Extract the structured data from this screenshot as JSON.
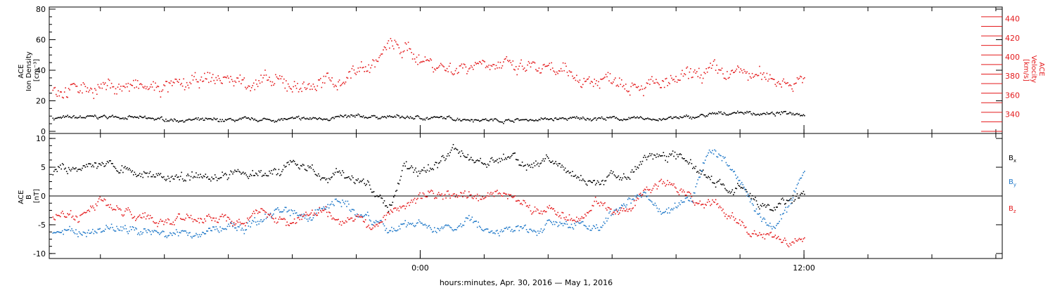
{
  "chart_data": {
    "type": "scatter",
    "xlabel": "hours:minutes, Apr. 30, 2016 — May  1, 2016",
    "x_tick_labels": [
      {
        "hours": 0,
        "label": "0:00"
      },
      {
        "hours": 12,
        "label": "12:00"
      }
    ],
    "x_range_hours": [
      -11.6,
      18.2
    ],
    "x_minor_tick_interval_hours": 2,
    "data_end_hours": 12.0,
    "colors": {
      "black": "#000000",
      "red": "#e41a1c",
      "blue": "#1f78c8"
    },
    "panels": [
      {
        "id": "top",
        "left_axis": {
          "label_lines": [
            "ACE",
            "Ion Density",
            "[cm⁻³]"
          ],
          "range": [
            0,
            80
          ],
          "ticks": [
            0,
            20,
            40,
            60,
            80
          ],
          "color": "#000000"
        },
        "right_axis": {
          "label_lines": [
            "ACE",
            "Velocity",
            "[km/s]"
          ],
          "range": [
            322,
            450
          ],
          "ticks": [
            340,
            360,
            380,
            400,
            420,
            440
          ],
          "color": "#e41a1c"
        },
        "series": [
          {
            "axis": "left",
            "color": "#000000",
            "points": [
              [
                -11.5,
                9
              ],
              [
                -10.5,
                9.5
              ],
              [
                -9.5,
                10
              ],
              [
                -8.5,
                8.5
              ],
              [
                -7.5,
                7.8
              ],
              [
                -6.5,
                7.5
              ],
              [
                -5.5,
                7.8
              ],
              [
                -4.5,
                8
              ],
              [
                -3.5,
                8.5
              ],
              [
                -2.5,
                9.5
              ],
              [
                -1.5,
                10
              ],
              [
                -0.5,
                9.5
              ],
              [
                0.5,
                9
              ],
              [
                1.5,
                8.5
              ],
              [
                2.0,
                8
              ],
              [
                2.5,
                7.5
              ],
              [
                3.5,
                8
              ],
              [
                4.5,
                8.5
              ],
              [
                5.5,
                9
              ],
              [
                6.5,
                8.5
              ],
              [
                7.5,
                8.5
              ],
              [
                8.5,
                9.5
              ],
              [
                9.0,
                11
              ],
              [
                9.5,
                12
              ],
              [
                10.0,
                13
              ],
              [
                10.5,
                12
              ],
              [
                11.0,
                11.5
              ],
              [
                11.5,
                12.5
              ],
              [
                12.0,
                12
              ]
            ]
          },
          {
            "axis": "right",
            "color": "#e41a1c",
            "points": [
              [
                -11.5,
                366
              ],
              [
                -10.5,
                368
              ],
              [
                -9.5,
                370
              ],
              [
                -8.5,
                367
              ],
              [
                -7.5,
                369
              ],
              [
                -6.5,
                378
              ],
              [
                -5.5,
                375
              ],
              [
                -4.5,
                372
              ],
              [
                -3.5,
                370
              ],
              [
                -2.5,
                376
              ],
              [
                -2.0,
                388
              ],
              [
                -1.5,
                392
              ],
              [
                -1.0,
                412
              ],
              [
                -0.5,
                408
              ],
              [
                0.0,
                400
              ],
              [
                0.5,
                392
              ],
              [
                1.0,
                388
              ],
              [
                1.5,
                392
              ],
              [
                2.0,
                398
              ],
              [
                2.5,
                392
              ],
              [
                3.0,
                386
              ],
              [
                3.5,
                390
              ],
              [
                4.0,
                384
              ],
              [
                4.5,
                382
              ],
              [
                5.0,
                378
              ],
              [
                5.5,
                375
              ],
              [
                6.0,
                380
              ],
              [
                6.5,
                376
              ],
              [
                7.0,
                372
              ],
              [
                7.5,
                370
              ],
              [
                8.0,
                374
              ],
              [
                8.5,
                380
              ],
              [
                9.0,
                385
              ],
              [
                9.5,
                382
              ],
              [
                10.0,
                384
              ],
              [
                10.5,
                380
              ],
              [
                11.0,
                378
              ],
              [
                11.5,
                376
              ],
              [
                12.0,
                374
              ]
            ]
          }
        ]
      },
      {
        "id": "bottom",
        "left_axis": {
          "label_lines": [
            "ACE",
            "B",
            "[nT]"
          ],
          "range": [
            -10.5,
            10.5
          ],
          "ticks": [
            -10,
            -5,
            0,
            5,
            10
          ],
          "color": "#000000"
        },
        "zero_line": true,
        "series": [
          {
            "name": "Bx",
            "color": "#000000",
            "points": [
              [
                -11.5,
                4
              ],
              [
                -10.5,
                5
              ],
              [
                -9.5,
                5.5
              ],
              [
                -9.0,
                4.5
              ],
              [
                -8.5,
                4
              ],
              [
                -8.0,
                3
              ],
              [
                -7.5,
                3.5
              ],
              [
                -7.0,
                4
              ],
              [
                -6.5,
                3
              ],
              [
                -6.0,
                4
              ],
              [
                -5.5,
                4
              ],
              [
                -5.0,
                4.5
              ],
              [
                -4.5,
                3.5
              ],
              [
                -4.0,
                6
              ],
              [
                -3.5,
                5
              ],
              [
                -3.0,
                2.5
              ],
              [
                -2.5,
                4
              ],
              [
                -2.0,
                3.5
              ],
              [
                -1.5,
                1
              ],
              [
                -1.0,
                -2
              ],
              [
                -0.5,
                5
              ],
              [
                0.0,
                4
              ],
              [
                0.5,
                5.5
              ],
              [
                1.0,
                8
              ],
              [
                1.5,
                7
              ],
              [
                2.0,
                6
              ],
              [
                2.5,
                6.5
              ],
              [
                3.0,
                6.5
              ],
              [
                3.5,
                5
              ],
              [
                4.0,
                6.5
              ],
              [
                4.5,
                4
              ],
              [
                5.0,
                3
              ],
              [
                5.5,
                2
              ],
              [
                6.0,
                4
              ],
              [
                6.5,
                3
              ],
              [
                7.0,
                6.5
              ],
              [
                7.5,
                7.5
              ],
              [
                8.0,
                7
              ],
              [
                8.5,
                5.5
              ],
              [
                9.0,
                3
              ],
              [
                9.5,
                1
              ],
              [
                10.0,
                1.5
              ],
              [
                10.5,
                -1
              ],
              [
                11.0,
                -2.5
              ],
              [
                11.5,
                -0.5
              ],
              [
                12.0,
                1
              ]
            ]
          },
          {
            "name": "By",
            "color": "#1f78c8",
            "points": [
              [
                -11.5,
                -6
              ],
              [
                -10.5,
                -6
              ],
              [
                -9.5,
                -5.5
              ],
              [
                -9.0,
                -6
              ],
              [
                -8.5,
                -6.5
              ],
              [
                -8.0,
                -6
              ],
              [
                -7.5,
                -6.5
              ],
              [
                -7.0,
                -6.5
              ],
              [
                -6.5,
                -6
              ],
              [
                -6.0,
                -5
              ],
              [
                -5.5,
                -5.5
              ],
              [
                -5.0,
                -4
              ],
              [
                -4.5,
                -2.5
              ],
              [
                -4.0,
                -3
              ],
              [
                -3.5,
                -4
              ],
              [
                -3.0,
                -2
              ],
              [
                -2.5,
                -1
              ],
              [
                -2.0,
                -3
              ],
              [
                -1.5,
                -4
              ],
              [
                -1.0,
                -6
              ],
              [
                -0.5,
                -5
              ],
              [
                0.0,
                -4.5
              ],
              [
                0.5,
                -5.5
              ],
              [
                1.0,
                -6
              ],
              [
                1.5,
                -4
              ],
              [
                2.0,
                -6
              ],
              [
                2.5,
                -6.5
              ],
              [
                3.0,
                -5
              ],
              [
                3.5,
                -6
              ],
              [
                4.0,
                -4.5
              ],
              [
                4.5,
                -5.5
              ],
              [
                5.0,
                -4.5
              ],
              [
                5.5,
                -5.5
              ],
              [
                6.0,
                -3
              ],
              [
                6.5,
                -1
              ],
              [
                7.0,
                0.5
              ],
              [
                7.5,
                -3.5
              ],
              [
                8.0,
                -2
              ],
              [
                8.5,
                0
              ],
              [
                9.0,
                8
              ],
              [
                9.5,
                7
              ],
              [
                10.0,
                2
              ],
              [
                10.5,
                -3
              ],
              [
                11.0,
                -6
              ],
              [
                11.5,
                -2
              ],
              [
                12.0,
                5
              ]
            ]
          },
          {
            "name": "Bz",
            "color": "#e41a1c",
            "points": [
              [
                -11.5,
                -3
              ],
              [
                -10.5,
                -3.5
              ],
              [
                -10.0,
                -1
              ],
              [
                -9.5,
                -2.5
              ],
              [
                -9.0,
                -3.5
              ],
              [
                -8.5,
                -3
              ],
              [
                -8.0,
                -4.5
              ],
              [
                -7.5,
                -3
              ],
              [
                -7.0,
                -4
              ],
              [
                -6.5,
                -3.5
              ],
              [
                -6.0,
                -4
              ],
              [
                -5.5,
                -5
              ],
              [
                -5.0,
                -2
              ],
              [
                -4.5,
                -3.5
              ],
              [
                -4.0,
                -4
              ],
              [
                -3.5,
                -3
              ],
              [
                -3.0,
                -2.5
              ],
              [
                -2.5,
                -4.5
              ],
              [
                -2.0,
                -3
              ],
              [
                -1.5,
                -6
              ],
              [
                -1.0,
                -3
              ],
              [
                -0.5,
                -1.5
              ],
              [
                0.0,
                0.5
              ],
              [
                0.5,
                0
              ],
              [
                1.0,
                0
              ],
              [
                1.5,
                0.5
              ],
              [
                2.0,
                -0.5
              ],
              [
                2.5,
                0
              ],
              [
                3.0,
                -0.5
              ],
              [
                3.5,
                -2
              ],
              [
                4.0,
                -2.5
              ],
              [
                4.5,
                -3.5
              ],
              [
                5.0,
                -4
              ],
              [
                5.5,
                -1
              ],
              [
                6.0,
                -3
              ],
              [
                6.5,
                -2.5
              ],
              [
                7.0,
                1
              ],
              [
                7.5,
                2
              ],
              [
                8.0,
                1
              ],
              [
                8.5,
                0
              ],
              [
                9.0,
                -1
              ],
              [
                9.5,
                -3
              ],
              [
                10.0,
                -5
              ],
              [
                10.5,
                -6
              ],
              [
                11.0,
                -7
              ],
              [
                11.5,
                -8
              ],
              [
                12.0,
                -7
              ]
            ]
          }
        ]
      }
    ],
    "legend": [
      {
        "main": "B",
        "sub": "x",
        "color": "#000000"
      },
      {
        "main": "B",
        "sub": "y",
        "color": "#1f78c8"
      },
      {
        "main": "B",
        "sub": "z",
        "color": "#e41a1c"
      }
    ]
  }
}
